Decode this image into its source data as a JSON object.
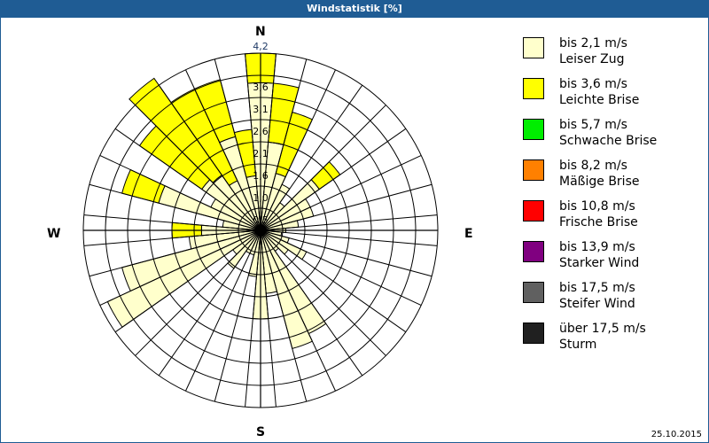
{
  "window": {
    "title": "Windstatistik [%]"
  },
  "compass": {
    "north": "N",
    "east": "E",
    "south": "S",
    "west": "W"
  },
  "footer": {
    "date": "25.10.2015"
  },
  "legend": [
    {
      "range": "bis 2,1 m/s",
      "name": "Leiser Zug",
      "color": "#ffffcc"
    },
    {
      "range": "bis 3,6 m/s",
      "name": "Leichte Brise",
      "color": "#ffff00"
    },
    {
      "range": "bis 5,7 m/s",
      "name": "Schwache Brise",
      "color": "#00ee00"
    },
    {
      "range": "bis 8,2 m/s",
      "name": "Mäßige Brise",
      "color": "#ff8000"
    },
    {
      "range": "bis 10,8 m/s",
      "name": "Frische Brise",
      "color": "#ff0000"
    },
    {
      "range": "bis 13,9 m/s",
      "name": "Starker Wind",
      "color": "#800080"
    },
    {
      "range": "bis 17,5 m/s",
      "name": "Steifer Wind",
      "color": "#606060"
    },
    {
      "range": "über 17,5 m/s",
      "name": "Sturm",
      "color": "#202020"
    }
  ],
  "chart_data": {
    "type": "polar-stacked-bar (wind rose)",
    "title": "Windstatistik [%]",
    "radial_unit": "%",
    "radial_ticks": [
      "0,5",
      "1,0",
      "1,6",
      "2,1",
      "2,6",
      "3,1",
      "3,6",
      "4,2"
    ],
    "radial_max": 4.2,
    "sector_width_deg": 10,
    "directions_deg": [
      0,
      10,
      20,
      30,
      40,
      50,
      60,
      70,
      80,
      90,
      100,
      110,
      120,
      130,
      140,
      150,
      160,
      170,
      180,
      190,
      200,
      210,
      220,
      230,
      240,
      250,
      260,
      270,
      280,
      290,
      300,
      310,
      320,
      330,
      340,
      350
    ],
    "series": [
      {
        "name": "bis 2,1 m/s (Leiser Zug)",
        "color": "#ffffcc",
        "values": [
          3.5,
          2.1,
          1.4,
          1.2,
          0.8,
          1.7,
          1.3,
          1.3,
          0.9,
          0.6,
          0.5,
          0.7,
          1.2,
          0.8,
          0.6,
          2.7,
          2.9,
          1.5,
          2.1,
          1.1,
          0.6,
          0.6,
          1.1,
          0.8,
          4.0,
          3.4,
          1.7,
          1.4,
          0.9,
          2.5,
          1.3,
          1.7,
          1.6,
          1.3,
          2.3,
          1.3
        ]
      },
      {
        "name": "bis 3,6 m/s (Leichte Brise)",
        "color": "#ffff00",
        "values": [
          0.7,
          1.4,
          1.5,
          0,
          0,
          0.6,
          0,
          0,
          0,
          0,
          0,
          0,
          0,
          0,
          0,
          0,
          0,
          0,
          0,
          0,
          0,
          0,
          0,
          0,
          0,
          0,
          0,
          0.7,
          0,
          0.9,
          0,
          1.8,
          2.8,
          2.4,
          1.4,
          1.1
        ]
      },
      {
        "name": "bis 5,7 m/s",
        "color": "#00ee00",
        "values": []
      },
      {
        "name": "bis 8,2 m/s",
        "color": "#ff8000",
        "values": []
      },
      {
        "name": "bis 10,8 m/s",
        "color": "#ff0000",
        "values": []
      },
      {
        "name": "bis 13,9 m/s",
        "color": "#800080",
        "values": []
      },
      {
        "name": "bis 17,5 m/s",
        "color": "#606060",
        "values": []
      },
      {
        "name": "über 17,5 m/s",
        "color": "#202020",
        "values": []
      }
    ],
    "legend_position": "right",
    "grid": true
  }
}
